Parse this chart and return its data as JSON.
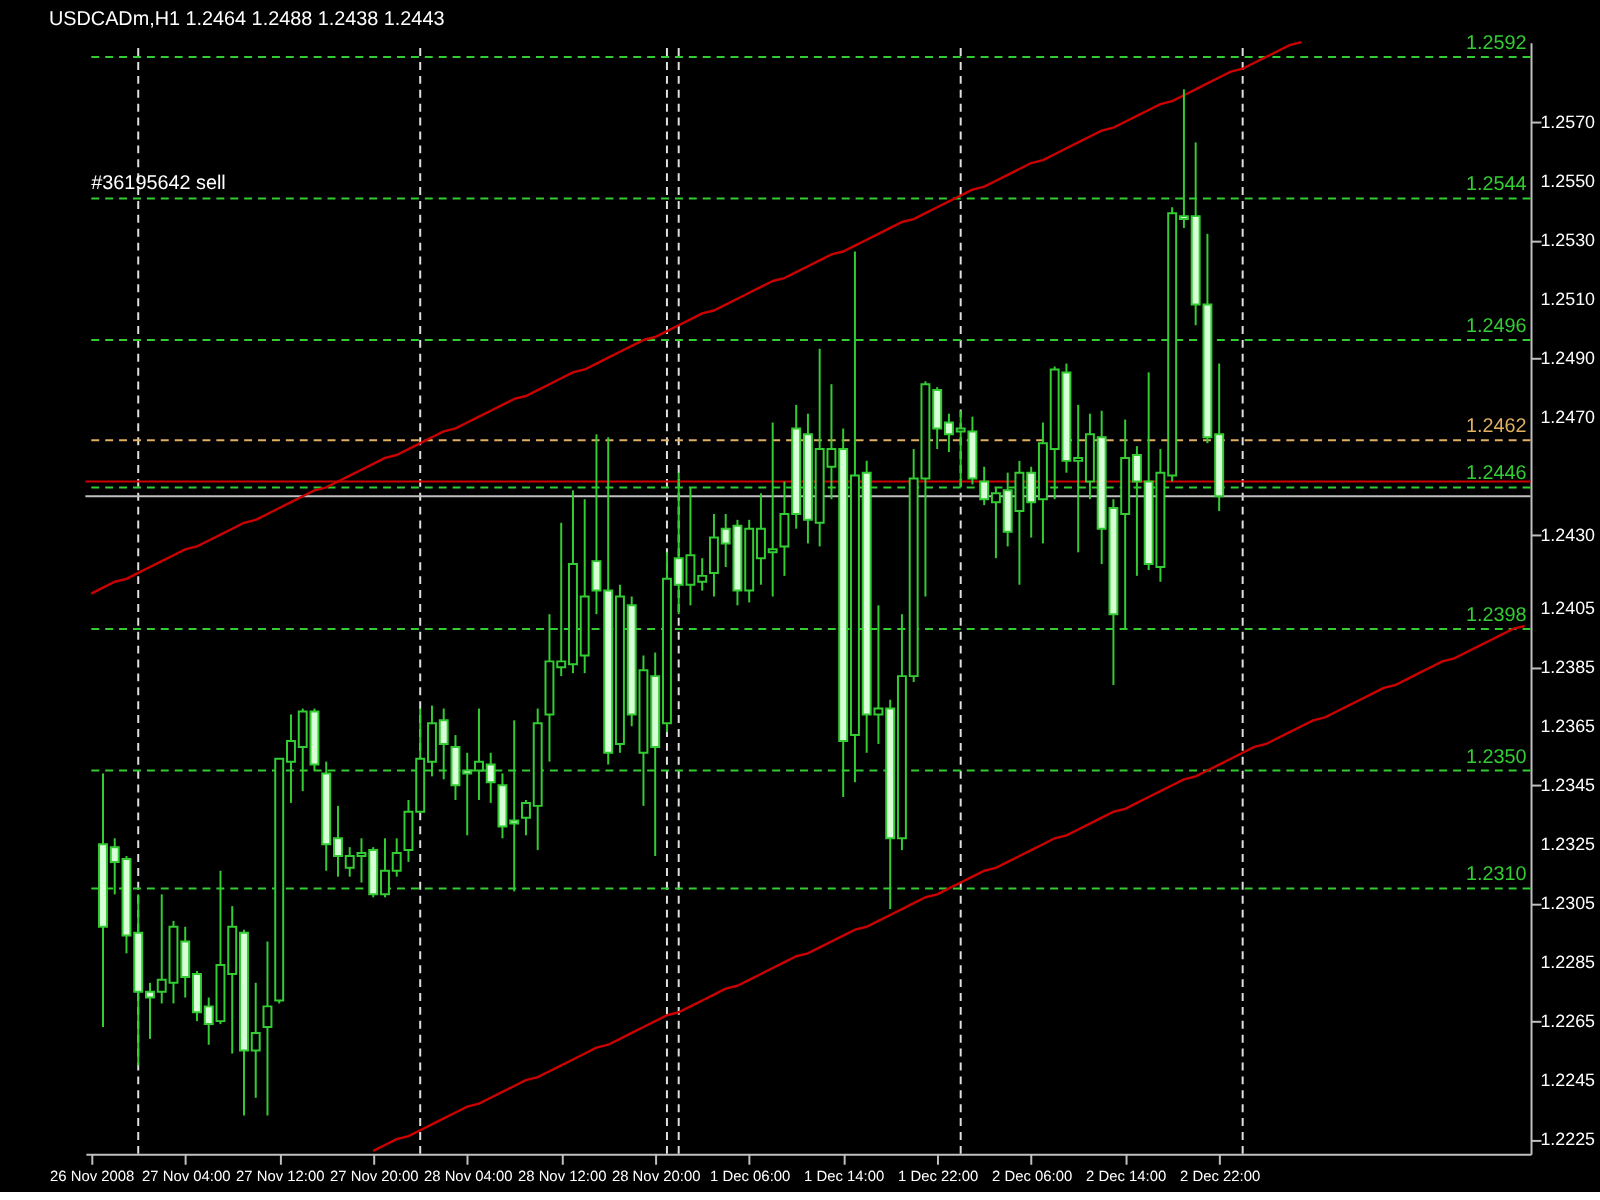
{
  "chart_data": {
    "type": "candlestick",
    "title": "USDCADm,H1 1.2464 1.2488 1.2438 1.2443",
    "color": "#33cc33",
    "categories": [
      "26 Nov 2008",
      null,
      null,
      null,
      null,
      null,
      null,
      null,
      "27 Nov 04:00",
      null,
      null,
      null,
      null,
      null,
      null,
      null,
      "27 Nov 12:00",
      null,
      null,
      null,
      null,
      null,
      null,
      null,
      "27 Nov 20:00",
      null,
      null,
      null,
      null,
      null,
      null,
      null,
      "28 Nov 04:00",
      null,
      null,
      null,
      null,
      null,
      null,
      null,
      "28 Nov 12:00",
      null,
      null,
      null,
      null,
      null,
      null,
      null,
      "28 Nov 20:00",
      null,
      null,
      null,
      null,
      null,
      null,
      null,
      "1 Dec 06:00",
      null,
      null,
      null,
      null,
      null,
      null,
      null,
      "1 Dec 14:00",
      null,
      null,
      null,
      null,
      null,
      null,
      null,
      "1 Dec 22:00",
      null,
      null,
      null,
      null,
      null,
      null,
      null,
      "2 Dec 06:00",
      null,
      null,
      null,
      null,
      null,
      null,
      null,
      "2 Dec 14:00",
      null,
      null,
      null,
      null,
      null,
      null,
      null,
      "2 Dec 22:00",
      null,
      null,
      null,
      null,
      null,
      null,
      null,
      null,
      null,
      null,
      null,
      null,
      null,
      null,
      null,
      null,
      null,
      null,
      null,
      null,
      null,
      null,
      null,
      null,
      null,
      null
    ],
    "ohlc": [
      null,
      [
        1.2325,
        1.2349,
        1.2263,
        1.2297
      ],
      [
        1.2324,
        1.2327,
        1.2308,
        1.2319
      ],
      [
        1.232,
        1.2321,
        1.2288,
        1.2294
      ],
      [
        1.2295,
        1.2308,
        1.225,
        1.2275
      ],
      [
        1.2275,
        1.2278,
        1.2259,
        1.2273
      ],
      [
        1.2275,
        1.2308,
        1.2271,
        1.2279
      ],
      [
        1.2278,
        1.2299,
        1.2271,
        1.2297
      ],
      [
        1.2292,
        1.2297,
        1.2273,
        1.228
      ],
      [
        1.2281,
        1.2282,
        1.2265,
        1.2268
      ],
      [
        1.227,
        1.2273,
        1.2257,
        1.2264
      ],
      [
        1.2265,
        1.2316,
        1.2264,
        1.2284
      ],
      [
        1.2281,
        1.2304,
        1.2254,
        1.2297
      ],
      [
        1.2295,
        1.2296,
        1.2233,
        1.2255
      ],
      [
        1.2255,
        1.2278,
        1.2239,
        1.2261
      ],
      [
        1.2263,
        1.2292,
        1.2233,
        1.227
      ],
      [
        1.2272,
        1.2354,
        1.2271,
        1.2354
      ],
      [
        1.2353,
        1.2369,
        1.2339,
        1.236
      ],
      [
        1.2358,
        1.2371,
        1.2343,
        1.237
      ],
      [
        1.237,
        1.2371,
        1.235,
        1.2352
      ],
      [
        1.2349,
        1.2353,
        1.2316,
        1.2325
      ],
      [
        1.2327,
        1.2338,
        1.2314,
        1.2321
      ],
      [
        1.2317,
        1.2324,
        1.2314,
        1.2321
      ],
      [
        1.2321,
        1.2327,
        1.2312,
        1.2322
      ],
      [
        1.2323,
        1.2324,
        1.2307,
        1.2308
      ],
      [
        1.2308,
        1.2327,
        1.2307,
        1.2316
      ],
      [
        1.2316,
        1.2327,
        1.2314,
        1.2322
      ],
      [
        1.2323,
        1.234,
        1.2319,
        1.2336
      ],
      [
        1.2336,
        1.2371,
        1.2336,
        1.2354
      ],
      [
        1.2353,
        1.2372,
        1.2348,
        1.2366
      ],
      [
        1.2367,
        1.2371,
        1.2347,
        1.2359
      ],
      [
        1.2358,
        1.2362,
        1.234,
        1.2345
      ],
      [
        1.235,
        1.2356,
        1.2328,
        1.2349
      ],
      [
        1.235,
        1.2371,
        1.234,
        1.2353
      ],
      [
        1.2352,
        1.2356,
        1.2339,
        1.2346
      ],
      [
        1.2345,
        1.2349,
        1.2327,
        1.2331
      ],
      [
        1.2333,
        1.2367,
        1.2309,
        1.2332
      ],
      [
        1.2334,
        1.234,
        1.2328,
        1.2339
      ],
      [
        1.2338,
        1.2371,
        1.2323,
        1.2366
      ],
      [
        1.2369,
        1.2403,
        1.2353,
        1.2387
      ],
      [
        1.2385,
        1.2434,
        1.2382,
        1.2387
      ],
      [
        1.2386,
        1.2445,
        1.2383,
        1.242
      ],
      [
        1.2389,
        1.2442,
        1.2383,
        1.2409
      ],
      [
        1.2421,
        1.2464,
        1.2403,
        1.2411
      ],
      [
        1.2411,
        1.2463,
        1.2352,
        1.2356
      ],
      [
        1.2359,
        1.2413,
        1.2356,
        1.2409
      ],
      [
        1.2406,
        1.2409,
        1.2365,
        1.2369
      ],
      [
        1.2356,
        1.2389,
        1.2338,
        1.2384
      ],
      [
        1.2382,
        1.239,
        1.2321,
        1.2358
      ],
      [
        1.2366,
        1.2424,
        1.2363,
        1.2415
      ],
      [
        1.2422,
        1.2451,
        1.2403,
        1.2413
      ],
      [
        1.2413,
        1.2446,
        1.2406,
        1.2423
      ],
      [
        1.2414,
        1.2422,
        1.2411,
        1.2416
      ],
      [
        1.2417,
        1.2437,
        1.2409,
        1.2429
      ],
      [
        1.2432,
        1.2437,
        1.2419,
        1.2427
      ],
      [
        1.2433,
        1.2435,
        1.2406,
        1.2411
      ],
      [
        1.2411,
        1.2435,
        1.2407,
        1.2432
      ],
      [
        1.2422,
        1.2444,
        1.2413,
        1.2432
      ],
      [
        1.2424,
        1.2468,
        1.2409,
        1.2425
      ],
      [
        1.2426,
        1.2448,
        1.2416,
        1.2437
      ],
      [
        1.2466,
        1.2474,
        1.2432,
        1.2437
      ],
      [
        1.2464,
        1.2471,
        1.2427,
        1.2435
      ],
      [
        1.2434,
        1.2493,
        1.2426,
        1.2459
      ],
      [
        1.2453,
        1.2481,
        1.2442,
        1.2459
      ],
      [
        1.2459,
        1.2466,
        1.2341,
        1.236
      ],
      [
        1.2362,
        1.2526,
        1.2346,
        1.245
      ],
      [
        1.2451,
        1.2455,
        1.2356,
        1.2369
      ],
      [
        1.2369,
        1.2406,
        1.2359,
        1.2371
      ],
      [
        1.2371,
        1.2374,
        1.2303,
        1.2327
      ],
      [
        1.2327,
        1.2403,
        1.2323,
        1.2382
      ],
      [
        1.2382,
        1.2459,
        1.238,
        1.2449
      ],
      [
        1.2449,
        1.2482,
        1.2409,
        1.2481
      ],
      [
        1.2479,
        1.248,
        1.2459,
        1.2466
      ],
      [
        1.2468,
        1.2471,
        1.2458,
        1.2464
      ],
      [
        1.2465,
        1.2472,
        1.2446,
        1.2466
      ],
      [
        1.2465,
        1.247,
        1.2447,
        1.2449
      ],
      [
        1.2448,
        1.2453,
        1.244,
        1.2442
      ],
      [
        1.2441,
        1.2446,
        1.2422,
        1.2444
      ],
      [
        1.2445,
        1.2451,
        1.2426,
        1.2431
      ],
      [
        1.2438,
        1.2455,
        1.2413,
        1.2451
      ],
      [
        1.2451,
        1.2453,
        1.2429,
        1.2441
      ],
      [
        1.2442,
        1.2468,
        1.2427,
        1.2461
      ],
      [
        1.2459,
        1.2487,
        1.2442,
        1.2486
      ],
      [
        1.2485,
        1.2488,
        1.2451,
        1.2455
      ],
      [
        1.2455,
        1.2474,
        1.2424,
        1.2456
      ],
      [
        1.2448,
        1.2471,
        1.2442,
        1.2464
      ],
      [
        1.2463,
        1.2472,
        1.242,
        1.2432
      ],
      [
        1.2439,
        1.2442,
        1.2379,
        1.2403
      ],
      [
        1.2437,
        1.2469,
        1.2398,
        1.2456
      ],
      [
        1.2457,
        1.246,
        1.2416,
        1.2448
      ],
      [
        1.2448,
        1.2485,
        1.2418,
        1.242
      ],
      [
        1.2419,
        1.2459,
        1.2414,
        1.2451
      ],
      [
        1.245,
        1.2541,
        1.2448,
        1.2539
      ],
      [
        1.2538,
        1.2581,
        1.2534,
        1.2537
      ],
      [
        1.2538,
        1.2563,
        1.2501,
        1.2508
      ],
      [
        1.2508,
        1.2532,
        1.2461,
        1.2463
      ],
      [
        1.2464,
        1.2488,
        1.2438,
        1.2443
      ],
      null,
      null,
      null,
      null,
      null,
      null,
      null,
      null,
      null,
      null,
      null,
      null,
      null,
      null,
      null,
      null,
      null,
      null,
      null,
      null,
      null,
      null,
      null,
      null,
      null,
      null
    ],
    "series": [
      {
        "type": "line",
        "color": "#cc0000",
        "values": [
          1.241,
          1.2412,
          1.2414,
          1.2415,
          1.2417,
          1.2419,
          1.2421,
          1.2423,
          1.2425,
          1.2426,
          1.2428,
          1.243,
          1.2432,
          1.2434,
          1.2435,
          1.2437,
          1.2439,
          1.2441,
          1.2443,
          1.2445,
          1.2446,
          1.2448,
          1.245,
          1.2452,
          1.2454,
          1.2456,
          1.2457,
          1.2459,
          1.2461,
          1.2463,
          1.2465,
          1.2466,
          1.2468,
          1.247,
          1.2472,
          1.2474,
          1.2476,
          1.2477,
          1.2479,
          1.2481,
          1.2483,
          1.2485,
          1.2486,
          1.2488,
          1.249,
          1.2492,
          1.2494,
          1.2496,
          1.2497,
          1.2499,
          1.2501,
          1.2503,
          1.2505,
          1.2506,
          1.2508,
          1.251,
          1.2512,
          1.2514,
          1.2516,
          1.2517,
          1.2519,
          1.2521,
          1.2523,
          1.2525,
          1.2526,
          1.2528,
          1.253,
          1.2532,
          1.2534,
          1.2536,
          1.2537,
          1.2539,
          1.2541,
          1.2543,
          1.2545,
          1.2547,
          1.2548,
          1.255,
          1.2552,
          1.2554,
          1.2556,
          1.2557,
          1.2559,
          1.2561,
          1.2563,
          1.2565,
          1.2567,
          1.2568,
          1.257,
          1.2572,
          1.2574,
          1.2576,
          1.2577,
          1.2579,
          1.2581,
          1.2583,
          1.2585,
          1.2587,
          1.2588,
          1.259,
          1.2592,
          1.2594,
          1.2596,
          1.2597,
          null,
          null,
          null,
          null,
          null,
          null,
          null,
          null,
          null,
          null,
          null,
          null,
          null,
          null,
          null,
          null,
          null,
          null,
          null
        ]
      },
      {
        "type": "line",
        "color": "#cc0000",
        "values": [
          null,
          null,
          null,
          null,
          null,
          null,
          null,
          null,
          null,
          null,
          null,
          null,
          null,
          null,
          null,
          null,
          null,
          null,
          null,
          null,
          null,
          null,
          null,
          null,
          1.2221,
          1.2223,
          1.2225,
          1.2226,
          1.2228,
          1.223,
          1.2232,
          1.2234,
          1.2236,
          1.2237,
          1.2239,
          1.2241,
          1.2243,
          1.2245,
          1.2246,
          1.2248,
          1.225,
          1.2252,
          1.2254,
          1.2256,
          1.2257,
          1.2259,
          1.2261,
          1.2263,
          1.2265,
          1.2267,
          1.2268,
          1.227,
          1.2272,
          1.2274,
          1.2276,
          1.2277,
          1.2279,
          1.2281,
          1.2283,
          1.2285,
          1.2287,
          1.2288,
          1.229,
          1.2292,
          1.2294,
          1.2296,
          1.2297,
          1.2299,
          1.2301,
          1.2303,
          1.2305,
          1.2307,
          1.2308,
          1.231,
          1.2312,
          1.2314,
          1.2316,
          1.2317,
          1.2319,
          1.2321,
          1.2323,
          1.2325,
          1.2327,
          1.2328,
          1.233,
          1.2332,
          1.2334,
          1.2336,
          1.2337,
          1.2339,
          1.2341,
          1.2343,
          1.2345,
          1.2347,
          1.2348,
          1.235,
          1.2352,
          1.2354,
          1.2356,
          1.2358,
          1.2359,
          1.2361,
          1.2363,
          1.2365,
          1.2367,
          1.2368,
          1.237,
          1.2372,
          1.2374,
          1.2376,
          1.2378,
          1.2379,
          1.2381,
          1.2383,
          1.2385,
          1.2387,
          1.2388,
          1.239,
          1.2392,
          1.2394,
          1.2396,
          1.2398,
          1.2399
        ]
      }
    ],
    "ylim": [
      1.222,
      1.2597
    ],
    "yticks": [
      {
        "value": 1.2225,
        "label": "1.2225"
      },
      {
        "value": 1.2245,
        "label": "1.2245"
      },
      {
        "value": 1.2265,
        "label": "1.2265"
      },
      {
        "value": 1.2285,
        "label": "1.2285"
      },
      {
        "value": 1.2305,
        "label": "1.2305"
      },
      {
        "value": 1.2325,
        "label": "1.2325"
      },
      {
        "value": 1.2345,
        "label": "1.2345"
      },
      {
        "value": 1.2365,
        "label": "1.2365"
      },
      {
        "value": 1.2385,
        "label": "1.2385"
      },
      {
        "value": 1.2405,
        "label": "1.2405"
      },
      {
        "value": 1.243,
        "label": "1.2430"
      },
      {
        "value": 1.247,
        "label": "1.2470"
      },
      {
        "value": 1.249,
        "label": "1.2490"
      },
      {
        "value": 1.251,
        "label": "1.2510"
      },
      {
        "value": 1.253,
        "label": "1.2530"
      },
      {
        "value": 1.255,
        "label": "1.2550"
      },
      {
        "value": 1.257,
        "label": "1.2570"
      }
    ],
    "ref_lines": [
      {
        "axis": "y",
        "value": 1.2592,
        "label": "1.2592",
        "color": "#33cc33",
        "line_style": "dashed"
      },
      {
        "axis": "y",
        "value": 1.2544,
        "label": "1.2544",
        "color": "#33cc33",
        "line_style": "dashed"
      },
      {
        "axis": "y",
        "value": 1.2496,
        "label": "1.2496",
        "color": "#33cc33",
        "line_style": "dashed"
      },
      {
        "axis": "y",
        "value": 1.2462,
        "label": "1.2462",
        "color": "#e0b060",
        "line_style": "dashed"
      },
      {
        "axis": "y",
        "value": 1.2448,
        "color": "#cc0000",
        "line_style": "solid"
      },
      {
        "axis": "y",
        "value": 1.2446,
        "label": "1.2446",
        "color": "#33cc33",
        "line_style": "dashed"
      },
      {
        "axis": "y",
        "value": 1.2443,
        "color": "#c0c0c0",
        "line_style": "solid"
      },
      {
        "axis": "y",
        "value": 1.2398,
        "label": "1.2398",
        "color": "#33cc33",
        "line_style": "dashed"
      },
      {
        "axis": "y",
        "value": 1.235,
        "label": "1.2350",
        "color": "#33cc33",
        "line_style": "dashed"
      },
      {
        "axis": "y",
        "value": 1.231,
        "label": "1.2310",
        "color": "#33cc33",
        "line_style": "dashed"
      }
    ],
    "annotations": [
      {
        "text": "#36195642 sell",
        "y": 1.2544
      }
    ]
  }
}
